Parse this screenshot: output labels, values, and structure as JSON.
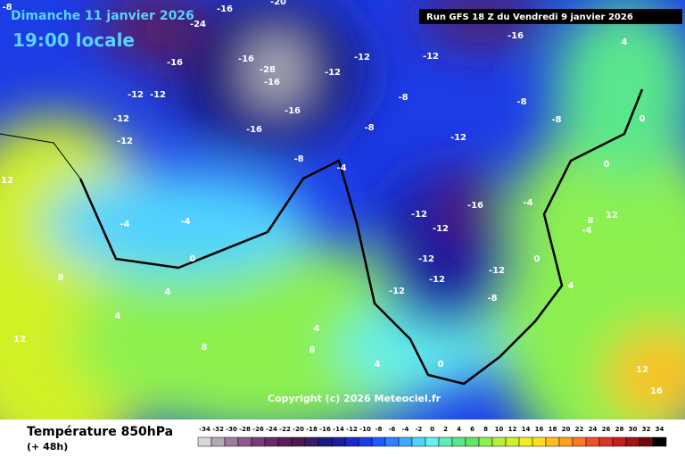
{
  "header": {
    "date": "Dimanche 11 janvier 2026",
    "time": "19:00 locale",
    "run": "Run GFS 18 Z du Vendredi 9 janvier 2026"
  },
  "copyright": "Copyright (c) 2026 Meteociel.fr",
  "footer": {
    "title": "Température 850hPa",
    "lead": "(+ 48h)"
  },
  "contour_labels": [
    -16,
    -20,
    -24,
    -16,
    -28,
    -16,
    -16,
    -16,
    -16,
    -12,
    -12,
    -12,
    -12,
    -12,
    -12,
    -12,
    -12,
    -8,
    -8,
    -8,
    -8,
    -8,
    -4,
    -4,
    -4,
    0,
    4,
    4,
    8,
    -16,
    -16,
    -12,
    -12,
    -12,
    -12,
    -12,
    -8,
    -12,
    0,
    4,
    0,
    0,
    4,
    8,
    12,
    4,
    12,
    16,
    -8,
    -4,
    0,
    -4,
    8,
    12,
    12,
    4,
    8
  ],
  "scale": {
    "values": [
      -34,
      -32,
      -30,
      -28,
      -26,
      -24,
      -22,
      -20,
      -18,
      -16,
      -14,
      -12,
      -10,
      -8,
      -6,
      -4,
      -2,
      0,
      2,
      4,
      6,
      8,
      10,
      12,
      14,
      16,
      18,
      20,
      22,
      24,
      26,
      28,
      30,
      32,
      34
    ],
    "colors": [
      "#d8d8d8",
      "#b4a8b4",
      "#a07aa0",
      "#8c5a8c",
      "#7a3c7a",
      "#6a2a6a",
      "#5a1e5a",
      "#4a1a50",
      "#3a1a6a",
      "#1c1c7a",
      "#1c1ca0",
      "#1c28c8",
      "#1c3ce6",
      "#1c5aff",
      "#2c82ff",
      "#3caaff",
      "#50d2ff",
      "#64f0f0",
      "#5af0b4",
      "#5ae68c",
      "#64e664",
      "#8cf050",
      "#b4f03c",
      "#d2f028",
      "#f0f01e",
      "#ffdc1e",
      "#ffbe1e",
      "#ffa01e",
      "#ff7828",
      "#f05028",
      "#dc3228",
      "#c81e1e",
      "#a01414",
      "#6e0a0a",
      "#000000"
    ]
  }
}
